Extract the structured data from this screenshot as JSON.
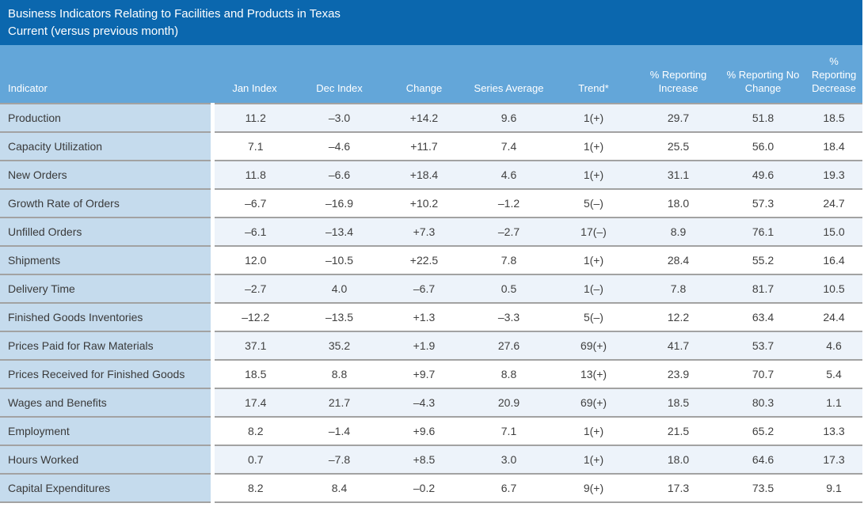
{
  "title": {
    "line1": "Business Indicators Relating to Facilities and Products in Texas",
    "line2": "Current (versus previous month)"
  },
  "table": {
    "columns": [
      "Indicator",
      "Jan Index",
      "Dec Index",
      "Change",
      "Series Average",
      "Trend*",
      "% Reporting Increase",
      "% Reporting No Change",
      "% Reporting Decrease"
    ],
    "rows": [
      {
        "indicator": "Production",
        "values": [
          "11.2",
          "–3.0",
          "+14.2",
          "9.6",
          "1(+)",
          "29.7",
          "51.8",
          "18.5"
        ]
      },
      {
        "indicator": "Capacity Utilization",
        "values": [
          "7.1",
          "–4.6",
          "+11.7",
          "7.4",
          "1(+)",
          "25.5",
          "56.0",
          "18.4"
        ]
      },
      {
        "indicator": "New Orders",
        "values": [
          "11.8",
          "–6.6",
          "+18.4",
          "4.6",
          "1(+)",
          "31.1",
          "49.6",
          "19.3"
        ]
      },
      {
        "indicator": "Growth Rate of Orders",
        "values": [
          "–6.7",
          "–16.9",
          "+10.2",
          "–1.2",
          "5(–)",
          "18.0",
          "57.3",
          "24.7"
        ]
      },
      {
        "indicator": "Unfilled Orders",
        "values": [
          "–6.1",
          "–13.4",
          "+7.3",
          "–2.7",
          "17(–)",
          "8.9",
          "76.1",
          "15.0"
        ]
      },
      {
        "indicator": "Shipments",
        "values": [
          "12.0",
          "–10.5",
          "+22.5",
          "7.8",
          "1(+)",
          "28.4",
          "55.2",
          "16.4"
        ]
      },
      {
        "indicator": "Delivery Time",
        "values": [
          "–2.7",
          "4.0",
          "–6.7",
          "0.5",
          "1(–)",
          "7.8",
          "81.7",
          "10.5"
        ]
      },
      {
        "indicator": "Finished Goods Inventories",
        "values": [
          "–12.2",
          "–13.5",
          "+1.3",
          "–3.3",
          "5(–)",
          "12.2",
          "63.4",
          "24.4"
        ]
      },
      {
        "indicator": "Prices Paid for Raw Materials",
        "values": [
          "37.1",
          "35.2",
          "+1.9",
          "27.6",
          "69(+)",
          "41.7",
          "53.7",
          "4.6"
        ]
      },
      {
        "indicator": "Prices Received for Finished Goods",
        "values": [
          "18.5",
          "8.8",
          "+9.7",
          "8.8",
          "13(+)",
          "23.9",
          "70.7",
          "5.4"
        ]
      },
      {
        "indicator": "Wages and Benefits",
        "values": [
          "17.4",
          "21.7",
          "–4.3",
          "20.9",
          "69(+)",
          "18.5",
          "80.3",
          "1.1"
        ]
      },
      {
        "indicator": "Employment",
        "values": [
          "8.2",
          "–1.4",
          "+9.6",
          "7.1",
          "1(+)",
          "21.5",
          "65.2",
          "13.3"
        ]
      },
      {
        "indicator": "Hours Worked",
        "values": [
          "0.7",
          "–7.8",
          "+8.5",
          "3.0",
          "1(+)",
          "18.0",
          "64.6",
          "17.3"
        ]
      },
      {
        "indicator": "Capital Expenditures",
        "values": [
          "8.2",
          "8.4",
          "–0.2",
          "6.7",
          "9(+)",
          "17.3",
          "73.5",
          "9.1"
        ]
      }
    ]
  },
  "colors": {
    "title_bar": "#0b67ae",
    "header_row": "#63a6d9",
    "indicator_column": "#c5dbed",
    "alt_row": "#edf3fa",
    "row_divider": "#a2a2a2",
    "header_text": "#ffffff",
    "cell_text": "#3f3f3f"
  },
  "chart_data": {
    "type": "table",
    "title": "Business Indicators Relating to Facilities and Products in Texas — Current (versus previous month)",
    "columns": [
      "Indicator",
      "Jan Index",
      "Dec Index",
      "Change",
      "Series Average",
      "Trend*",
      "% Reporting Increase",
      "% Reporting No Change",
      "% Reporting Decrease"
    ],
    "rows": [
      [
        "Production",
        11.2,
        -3.0,
        14.2,
        9.6,
        "1(+)",
        29.7,
        51.8,
        18.5
      ],
      [
        "Capacity Utilization",
        7.1,
        -4.6,
        11.7,
        7.4,
        "1(+)",
        25.5,
        56.0,
        18.4
      ],
      [
        "New Orders",
        11.8,
        -6.6,
        18.4,
        4.6,
        "1(+)",
        31.1,
        49.6,
        19.3
      ],
      [
        "Growth Rate of Orders",
        -6.7,
        -16.9,
        10.2,
        -1.2,
        "5(–)",
        18.0,
        57.3,
        24.7
      ],
      [
        "Unfilled Orders",
        -6.1,
        -13.4,
        7.3,
        -2.7,
        "17(–)",
        8.9,
        76.1,
        15.0
      ],
      [
        "Shipments",
        12.0,
        -10.5,
        22.5,
        7.8,
        "1(+)",
        28.4,
        55.2,
        16.4
      ],
      [
        "Delivery Time",
        -2.7,
        4.0,
        -6.7,
        0.5,
        "1(–)",
        7.8,
        81.7,
        10.5
      ],
      [
        "Finished Goods Inventories",
        -12.2,
        -13.5,
        1.3,
        -3.3,
        "5(–)",
        12.2,
        63.4,
        24.4
      ],
      [
        "Prices Paid for Raw Materials",
        37.1,
        35.2,
        1.9,
        27.6,
        "69(+)",
        41.7,
        53.7,
        4.6
      ],
      [
        "Prices Received for Finished Goods",
        18.5,
        8.8,
        9.7,
        8.8,
        "13(+)",
        23.9,
        70.7,
        5.4
      ],
      [
        "Wages and Benefits",
        17.4,
        21.7,
        -4.3,
        20.9,
        "69(+)",
        18.5,
        80.3,
        1.1
      ],
      [
        "Employment",
        8.2,
        -1.4,
        9.6,
        7.1,
        "1(+)",
        21.5,
        65.2,
        13.3
      ],
      [
        "Hours Worked",
        0.7,
        -7.8,
        8.5,
        3.0,
        "1(+)",
        18.0,
        64.6,
        17.3
      ],
      [
        "Capital Expenditures",
        8.2,
        8.4,
        -0.2,
        6.7,
        "9(+)",
        17.3,
        73.5,
        9.1
      ]
    ]
  }
}
